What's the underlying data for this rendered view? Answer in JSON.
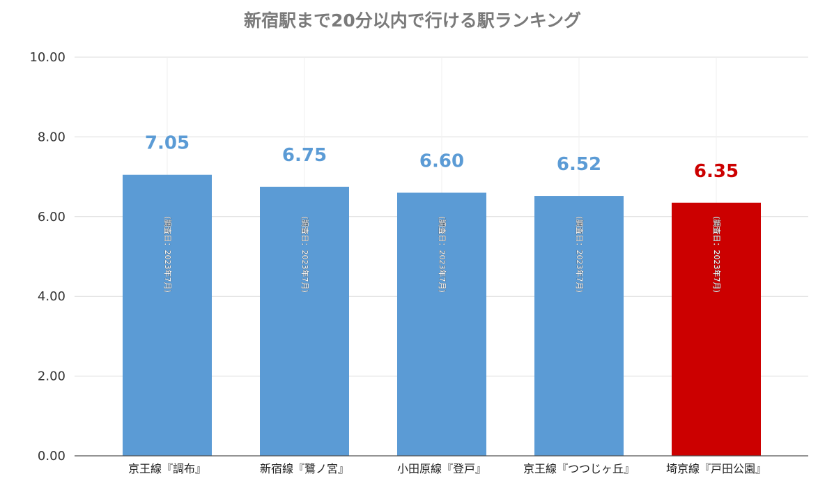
{
  "chart_data": {
    "type": "bar",
    "title": "新宿駅まで20分以内で行ける駅ランキング",
    "categories": [
      "京王線『調布』",
      "新宿線『鷺ノ宮』",
      "小田原線『登戸』",
      "京王線『つつじヶ丘』",
      "埼京線『戸田公園』"
    ],
    "values": [
      7.05,
      6.75,
      6.6,
      6.52,
      6.35
    ],
    "value_labels": [
      "7.05",
      "6.75",
      "6.60",
      "6.52",
      "6.35"
    ],
    "bar_inner_labels": [
      "(調査日：2023年7月)",
      "(調査日：2023年7月)",
      "(調査日：2023年7月)",
      "(調査日：2023年7月)",
      "(調査日：2023年7月)"
    ],
    "bar_colors": [
      "#5b9bd5",
      "#5b9bd5",
      "#5b9bd5",
      "#5b9bd5",
      "#cc0000"
    ],
    "label_colors": [
      "#5b9bd5",
      "#5b9bd5",
      "#5b9bd5",
      "#5b9bd5",
      "#cc0000"
    ],
    "ylim": [
      0,
      10
    ],
    "yticks": [
      "0.00",
      "2.00",
      "4.00",
      "6.00",
      "8.00",
      "10.00"
    ],
    "xlabel": "",
    "ylabel": "",
    "grid": true,
    "legend": "none"
  }
}
